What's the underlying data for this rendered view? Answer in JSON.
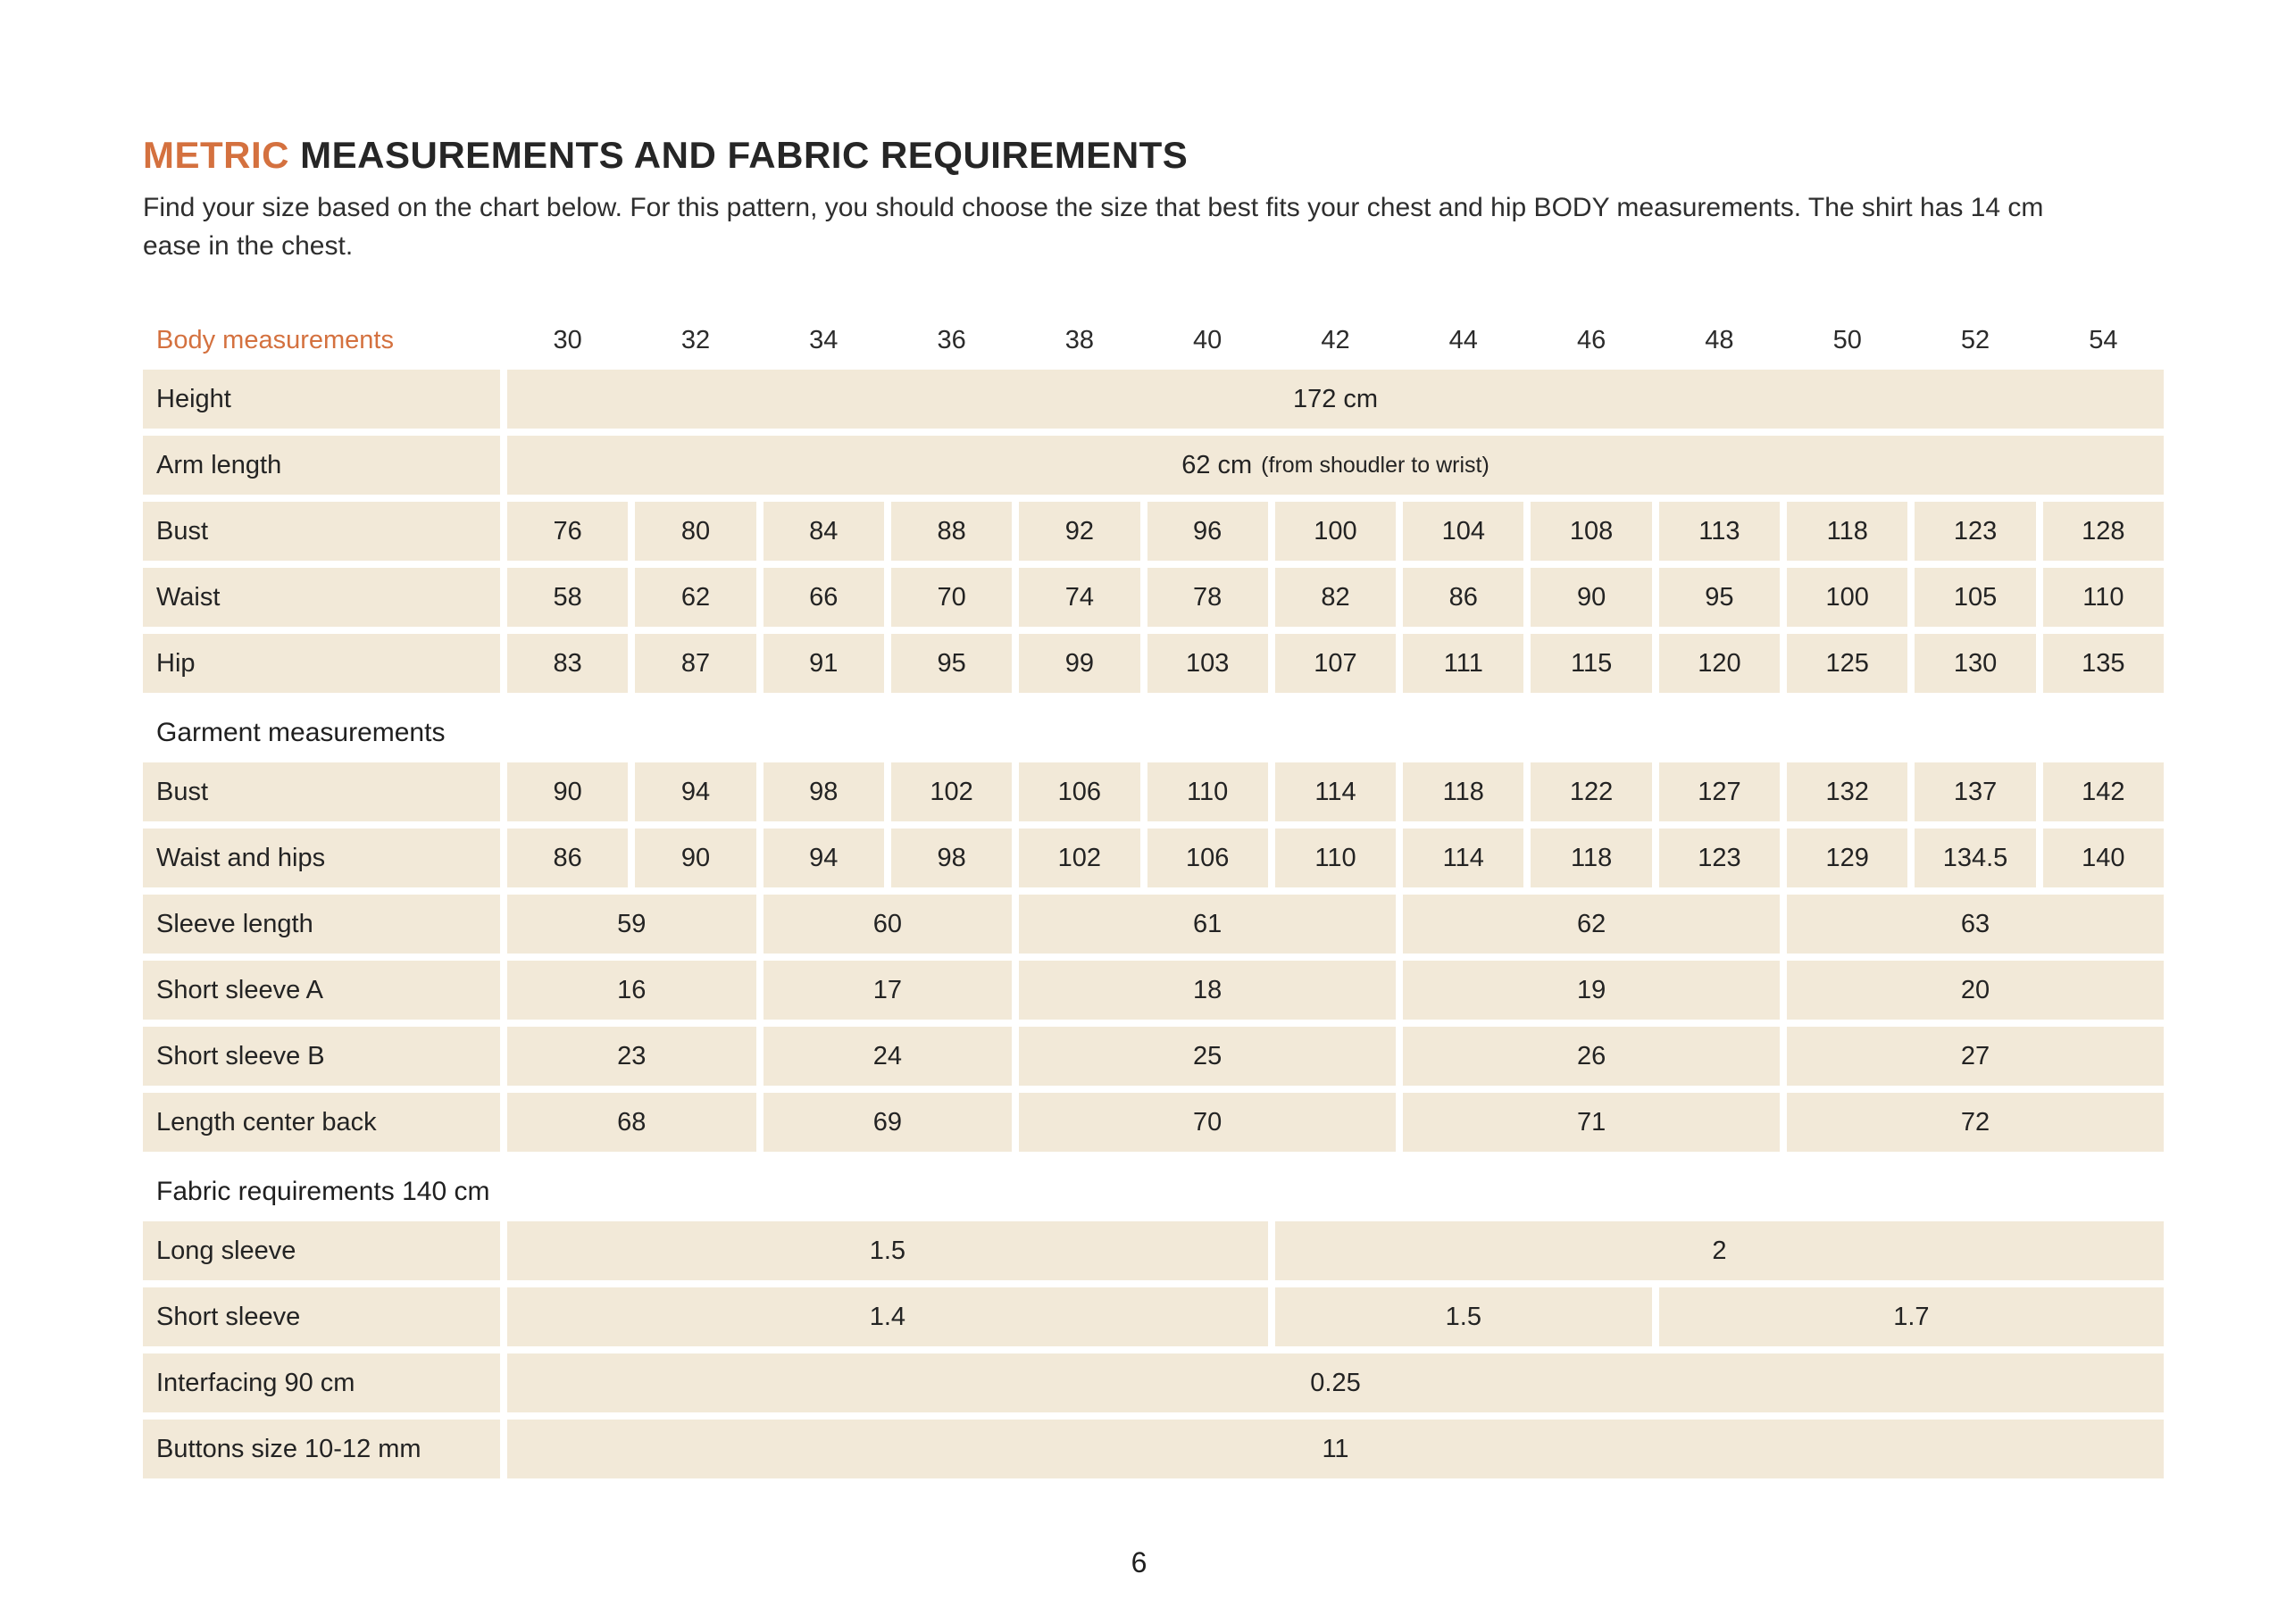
{
  "colors": {
    "accent": "#d4713f",
    "cell_bg": "#f2e9d8",
    "heading_text": "#262626",
    "body_text": "#2e2e2e",
    "page_bg": "#ffffff"
  },
  "meta": {
    "title_highlight": "METRIC",
    "title_rest": "MEASUREMENTS AND FABRIC REQUIREMENTS",
    "intro": "Find your size based on the chart below. For this pattern, you should choose the size that best fits your chest and hip BODY measurements. The shirt has 14 cm ease in the chest.",
    "page_number": "6"
  },
  "table": {
    "corner_label": "Body measurements",
    "sizes": [
      "30",
      "32",
      "34",
      "36",
      "38",
      "40",
      "42",
      "44",
      "46",
      "48",
      "50",
      "52",
      "54"
    ],
    "rows": [
      {
        "kind": "data",
        "label": "Height",
        "cells": [
          {
            "text": "172 cm",
            "span": 13
          }
        ]
      },
      {
        "kind": "data",
        "label": "Arm length",
        "cells": [
          {
            "text": "62 cm",
            "note": "(from shoudler to wrist)",
            "span": 13
          }
        ]
      },
      {
        "kind": "data",
        "label": "Bust",
        "cells": [
          {
            "text": "76"
          },
          {
            "text": "80"
          },
          {
            "text": "84"
          },
          {
            "text": "88"
          },
          {
            "text": "92"
          },
          {
            "text": "96"
          },
          {
            "text": "100"
          },
          {
            "text": "104"
          },
          {
            "text": "108"
          },
          {
            "text": "113"
          },
          {
            "text": "118"
          },
          {
            "text": "123"
          },
          {
            "text": "128"
          }
        ]
      },
      {
        "kind": "data",
        "label": "Waist",
        "cells": [
          {
            "text": "58"
          },
          {
            "text": "62"
          },
          {
            "text": "66"
          },
          {
            "text": "70"
          },
          {
            "text": "74"
          },
          {
            "text": "78"
          },
          {
            "text": "82"
          },
          {
            "text": "86"
          },
          {
            "text": "90"
          },
          {
            "text": "95"
          },
          {
            "text": "100"
          },
          {
            "text": "105"
          },
          {
            "text": "110"
          }
        ]
      },
      {
        "kind": "data",
        "label": "Hip",
        "cells": [
          {
            "text": "83"
          },
          {
            "text": "87"
          },
          {
            "text": "91"
          },
          {
            "text": "95"
          },
          {
            "text": "99"
          },
          {
            "text": "103"
          },
          {
            "text": "107"
          },
          {
            "text": "111"
          },
          {
            "text": "115"
          },
          {
            "text": "120"
          },
          {
            "text": "125"
          },
          {
            "text": "130"
          },
          {
            "text": "135"
          }
        ]
      },
      {
        "kind": "section",
        "label": "Garment measurements"
      },
      {
        "kind": "data",
        "label": "Bust",
        "cells": [
          {
            "text": "90"
          },
          {
            "text": "94"
          },
          {
            "text": "98"
          },
          {
            "text": "102"
          },
          {
            "text": "106"
          },
          {
            "text": "110"
          },
          {
            "text": "114"
          },
          {
            "text": "118"
          },
          {
            "text": "122"
          },
          {
            "text": "127"
          },
          {
            "text": "132"
          },
          {
            "text": "137"
          },
          {
            "text": "142"
          }
        ]
      },
      {
        "kind": "data",
        "label": "Waist and hips",
        "cells": [
          {
            "text": "86"
          },
          {
            "text": "90"
          },
          {
            "text": "94"
          },
          {
            "text": "98"
          },
          {
            "text": "102"
          },
          {
            "text": "106"
          },
          {
            "text": "110"
          },
          {
            "text": "114"
          },
          {
            "text": "118"
          },
          {
            "text": "123"
          },
          {
            "text": "129"
          },
          {
            "text": "134.5"
          },
          {
            "text": "140"
          }
        ]
      },
      {
        "kind": "data",
        "label": "Sleeve length",
        "cells": [
          {
            "text": "59",
            "span": 2
          },
          {
            "text": "60",
            "span": 2
          },
          {
            "text": "61",
            "span": 3
          },
          {
            "text": "62",
            "span": 3
          },
          {
            "text": "63",
            "span": 3
          }
        ]
      },
      {
        "kind": "data",
        "label": "Short sleeve A",
        "cells": [
          {
            "text": "16",
            "span": 2
          },
          {
            "text": "17",
            "span": 2
          },
          {
            "text": "18",
            "span": 3
          },
          {
            "text": "19",
            "span": 3
          },
          {
            "text": "20",
            "span": 3
          }
        ]
      },
      {
        "kind": "data",
        "label": "Short sleeve B",
        "cells": [
          {
            "text": "23",
            "span": 2
          },
          {
            "text": "24",
            "span": 2
          },
          {
            "text": "25",
            "span": 3
          },
          {
            "text": "26",
            "span": 3
          },
          {
            "text": "27",
            "span": 3
          }
        ]
      },
      {
        "kind": "data",
        "label": "Length center back",
        "cells": [
          {
            "text": "68",
            "span": 2
          },
          {
            "text": "69",
            "span": 2
          },
          {
            "text": "70",
            "span": 3
          },
          {
            "text": "71",
            "span": 3
          },
          {
            "text": "72",
            "span": 3
          }
        ]
      },
      {
        "kind": "section",
        "label": "Fabric requirements 140 cm"
      },
      {
        "kind": "data",
        "label": "Long sleeve",
        "cells": [
          {
            "text": "1.5",
            "span": 6
          },
          {
            "text": "2",
            "span": 7
          }
        ]
      },
      {
        "kind": "data",
        "label": "Short sleeve",
        "cells": [
          {
            "text": "1.4",
            "span": 6
          },
          {
            "text": "1.5",
            "span": 3
          },
          {
            "text": "1.7",
            "span": 4
          }
        ]
      },
      {
        "kind": "data",
        "label": "Interfacing 90 cm",
        "cells": [
          {
            "text": "0.25",
            "span": 13
          }
        ]
      },
      {
        "kind": "data",
        "label": "Buttons size 10-12 mm",
        "cells": [
          {
            "text": "11",
            "span": 13
          }
        ]
      }
    ]
  }
}
